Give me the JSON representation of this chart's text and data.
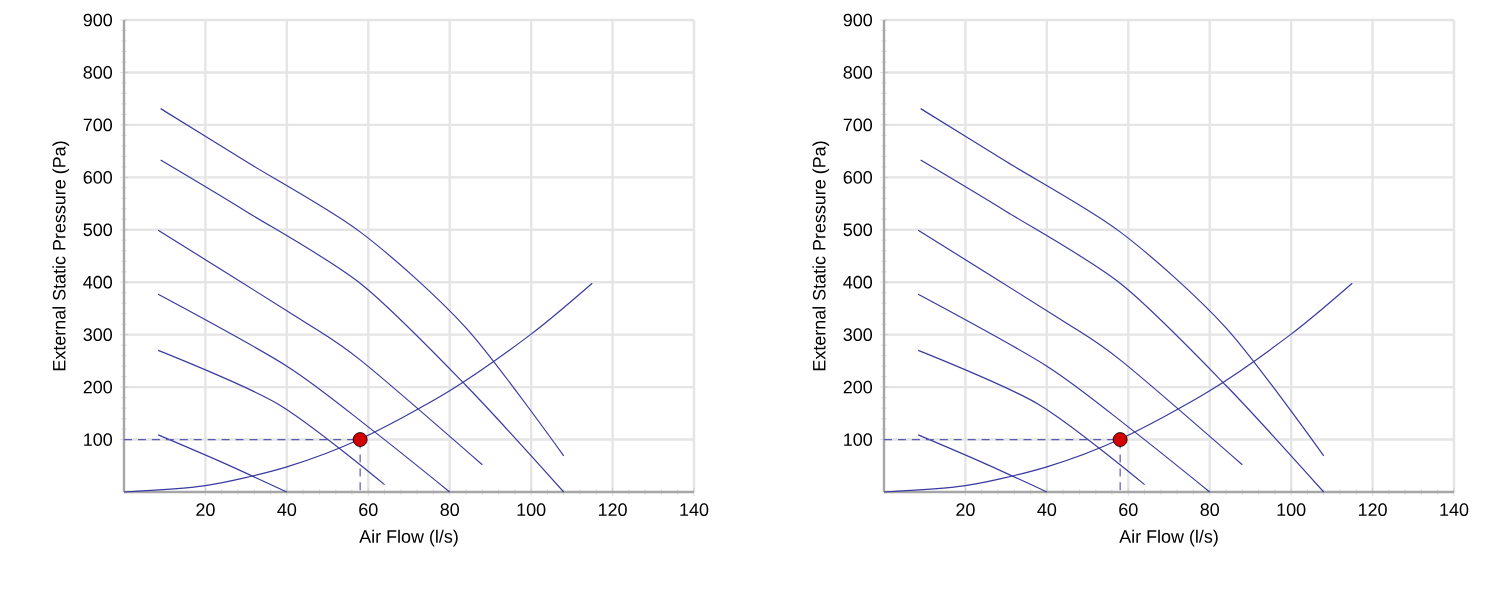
{
  "chart_data": [
    {
      "type": "line",
      "xlabel": "Air Flow (l/s)",
      "ylabel": "External Static Pressure (Pa)",
      "xlim": [
        0,
        140
      ],
      "ylim": [
        0,
        900
      ],
      "xticks": [
        20,
        40,
        60,
        80,
        100,
        120,
        140
      ],
      "yticks": [
        100,
        200,
        300,
        400,
        500,
        600,
        700,
        800,
        900
      ],
      "grid": true,
      "marker": "none",
      "line_style": "solid",
      "series": [
        {
          "color": "#3a3aa0",
          "x": [
            9,
            30,
            58,
            84,
            108
          ],
          "values": [
            731,
            630,
            496,
            313,
            69
          ]
        },
        {
          "color": "#3a3aa0",
          "x": [
            9,
            30,
            58,
            84,
            108
          ],
          "values": [
            633,
            535,
            398,
            203,
            0
          ]
        },
        {
          "color": "#3a3aa0",
          "x": [
            8.4,
            43,
            58,
            88
          ],
          "values": [
            499,
            331,
            252,
            52
          ]
        },
        {
          "color": "#3a3aa0",
          "x": [
            8.4,
            40,
            61,
            80
          ],
          "values": [
            377,
            240,
            118,
            0
          ]
        },
        {
          "color": "#3a3aa0",
          "x": [
            8.4,
            38,
            64
          ],
          "values": [
            270,
            167,
            14
          ]
        },
        {
          "color": "#3a3aa0",
          "x": [
            8.4,
            24,
            40
          ],
          "values": [
            109,
            57,
            0
          ]
        },
        {
          "color": "#3a3aa0",
          "x": [
            0,
            20,
            40,
            58,
            80,
            100,
            115
          ],
          "values": [
            0,
            12,
            48,
            101,
            193,
            301,
            398
          ]
        },
        {
          "color": "#5a5ab0",
          "line_style": "dashed",
          "x": [
            0,
            58,
            58
          ],
          "values": [
            100,
            100,
            0
          ]
        },
        {
          "type": "scatter",
          "marker": "circle",
          "color": "#d00000",
          "x": [
            58
          ],
          "values": [
            100
          ]
        }
      ]
    },
    {
      "type": "line",
      "xlabel": "Air Flow (l/s)",
      "ylabel": "External Static Pressure (Pa)",
      "xlim": [
        0,
        140
      ],
      "ylim": [
        0,
        900
      ],
      "xticks": [
        20,
        40,
        60,
        80,
        100,
        120,
        140
      ],
      "yticks": [
        100,
        200,
        300,
        400,
        500,
        600,
        700,
        800,
        900
      ],
      "grid": true,
      "marker": "none",
      "line_style": "solid",
      "series": [
        {
          "color": "#3a3aa0",
          "x": [
            9,
            30,
            58,
            84,
            108
          ],
          "values": [
            731,
            630,
            496,
            313,
            69
          ]
        },
        {
          "color": "#3a3aa0",
          "x": [
            9,
            30,
            58,
            84,
            108
          ],
          "values": [
            633,
            535,
            398,
            203,
            0
          ]
        },
        {
          "color": "#3a3aa0",
          "x": [
            8.4,
            43,
            58,
            88
          ],
          "values": [
            499,
            331,
            252,
            52
          ]
        },
        {
          "color": "#3a3aa0",
          "x": [
            8.4,
            40,
            61,
            80
          ],
          "values": [
            377,
            240,
            118,
            0
          ]
        },
        {
          "color": "#3a3aa0",
          "x": [
            8.4,
            38,
            64
          ],
          "values": [
            270,
            167,
            14
          ]
        },
        {
          "color": "#3a3aa0",
          "x": [
            8.4,
            24,
            40
          ],
          "values": [
            109,
            57,
            0
          ]
        },
        {
          "color": "#3a3aa0",
          "x": [
            0,
            20,
            40,
            58,
            80,
            100,
            115
          ],
          "values": [
            0,
            12,
            48,
            101,
            193,
            301,
            398
          ]
        },
        {
          "color": "#5a5ab0",
          "line_style": "dashed",
          "x": [
            0,
            58,
            58
          ],
          "values": [
            100,
            100,
            0
          ]
        },
        {
          "type": "scatter",
          "marker": "circle",
          "color": "#d00000",
          "x": [
            58
          ],
          "values": [
            100
          ]
        }
      ]
    }
  ]
}
